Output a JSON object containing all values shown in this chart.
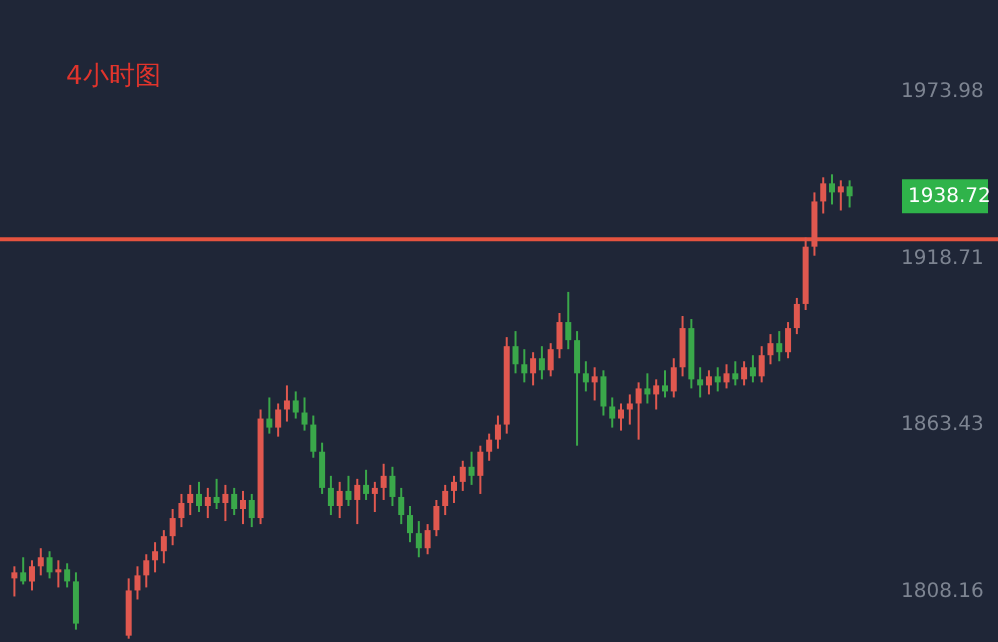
{
  "chart_data": {
    "type": "candlestick",
    "title": "4小时图",
    "categories": [
      null,
      null,
      null,
      null,
      null,
      null,
      null,
      null,
      null,
      null,
      null,
      null,
      null,
      null,
      null,
      null,
      null,
      null,
      null,
      null,
      null,
      null,
      null,
      null,
      null,
      null,
      null,
      null,
      null,
      null,
      null,
      null,
      null,
      null,
      null,
      null,
      null,
      null,
      null,
      null,
      null,
      null,
      null,
      null,
      null,
      null,
      null,
      null,
      null,
      null,
      null,
      null,
      null,
      null,
      null,
      null,
      null,
      null,
      null,
      null,
      null,
      null,
      null,
      null,
      null,
      null,
      null,
      null,
      null,
      null,
      null,
      null,
      null,
      null,
      null,
      null,
      null,
      null,
      null,
      null,
      null,
      null,
      null,
      null,
      null,
      null,
      null,
      null,
      null,
      null,
      null,
      null,
      null,
      null,
      null,
      null
    ],
    "ohlc": [
      [
        1812,
        1816,
        1806,
        1814
      ],
      [
        1814,
        1819,
        1810,
        1811
      ],
      [
        1811,
        1818,
        1808,
        1816
      ],
      [
        1816,
        1822,
        1813,
        1819
      ],
      [
        1819,
        1821,
        1812,
        1814
      ],
      [
        1814,
        1818,
        1809,
        1815
      ],
      [
        1815,
        1817,
        1809,
        1811
      ],
      [
        1811,
        1814,
        1795,
        1797
      ],
      null,
      null,
      null,
      null,
      null,
      [
        1793,
        1812,
        1792,
        1808
      ],
      [
        1808,
        1816,
        1805,
        1813
      ],
      [
        1813,
        1820,
        1809,
        1818
      ],
      [
        1818,
        1824,
        1814,
        1821
      ],
      [
        1821,
        1828,
        1817,
        1826
      ],
      [
        1826,
        1835,
        1823,
        1832
      ],
      [
        1832,
        1840,
        1829,
        1837
      ],
      [
        1837,
        1843,
        1833,
        1840
      ],
      [
        1840,
        1844,
        1834,
        1836
      ],
      [
        1836,
        1842,
        1832,
        1839
      ],
      [
        1839,
        1845,
        1835,
        1837
      ],
      [
        1837,
        1843,
        1831,
        1840
      ],
      [
        1840,
        1842,
        1833,
        1835
      ],
      [
        1835,
        1841,
        1830,
        1838
      ],
      [
        1838,
        1840,
        1829,
        1832
      ],
      [
        1832,
        1868,
        1830,
        1865
      ],
      [
        1865,
        1872,
        1860,
        1862
      ],
      [
        1862,
        1870,
        1859,
        1868
      ],
      [
        1868,
        1876,
        1864,
        1871
      ],
      [
        1871,
        1874,
        1865,
        1867
      ],
      [
        1867,
        1872,
        1861,
        1863
      ],
      [
        1863,
        1866,
        1852,
        1854
      ],
      [
        1854,
        1857,
        1840,
        1842
      ],
      [
        1842,
        1846,
        1833,
        1836
      ],
      [
        1836,
        1844,
        1832,
        1841
      ],
      [
        1841,
        1846,
        1836,
        1838
      ],
      [
        1838,
        1845,
        1830,
        1843
      ],
      [
        1843,
        1848,
        1838,
        1840
      ],
      [
        1840,
        1844,
        1834,
        1842
      ],
      [
        1842,
        1850,
        1838,
        1846
      ],
      [
        1846,
        1849,
        1836,
        1839
      ],
      [
        1839,
        1842,
        1830,
        1833
      ],
      [
        1833,
        1836,
        1824,
        1827
      ],
      [
        1827,
        1831,
        1819,
        1822
      ],
      [
        1822,
        1830,
        1820,
        1828
      ],
      [
        1828,
        1838,
        1826,
        1836
      ],
      [
        1836,
        1843,
        1833,
        1841
      ],
      [
        1841,
        1846,
        1837,
        1844
      ],
      [
        1844,
        1851,
        1841,
        1849
      ],
      [
        1849,
        1854,
        1843,
        1846
      ],
      [
        1846,
        1856,
        1840,
        1854
      ],
      [
        1854,
        1860,
        1851,
        1858
      ],
      [
        1858,
        1866,
        1855,
        1863
      ],
      [
        1863,
        1892,
        1860,
        1889
      ],
      [
        1889,
        1894,
        1880,
        1883
      ],
      [
        1883,
        1888,
        1877,
        1880
      ],
      [
        1880,
        1887,
        1876,
        1885
      ],
      [
        1885,
        1889,
        1878,
        1881
      ],
      [
        1881,
        1890,
        1879,
        1888
      ],
      [
        1888,
        1900,
        1885,
        1897
      ],
      [
        1897,
        1907,
        1888,
        1891
      ],
      [
        1891,
        1894,
        1856,
        1880
      ],
      [
        1880,
        1884,
        1874,
        1877
      ],
      [
        1877,
        1882,
        1871,
        1879
      ],
      [
        1879,
        1881,
        1866,
        1869
      ],
      [
        1869,
        1872,
        1862,
        1865
      ],
      [
        1865,
        1870,
        1861,
        1868
      ],
      [
        1868,
        1873,
        1863,
        1870
      ],
      [
        1870,
        1877,
        1858,
        1875
      ],
      [
        1875,
        1880,
        1870,
        1873
      ],
      [
        1873,
        1878,
        1868,
        1876
      ],
      [
        1876,
        1881,
        1872,
        1874
      ],
      [
        1874,
        1885,
        1872,
        1882
      ],
      [
        1882,
        1899,
        1879,
        1895
      ],
      [
        1895,
        1898,
        1875,
        1878
      ],
      [
        1878,
        1882,
        1872,
        1876
      ],
      [
        1876,
        1881,
        1873,
        1879
      ],
      [
        1879,
        1882,
        1874,
        1877
      ],
      [
        1877,
        1883,
        1875,
        1880
      ],
      [
        1880,
        1884,
        1876,
        1878
      ],
      [
        1878,
        1884,
        1876,
        1882
      ],
      [
        1882,
        1886,
        1877,
        1879
      ],
      [
        1879,
        1889,
        1877,
        1886
      ],
      [
        1886,
        1893,
        1883,
        1890
      ],
      [
        1890,
        1894,
        1884,
        1887
      ],
      [
        1887,
        1897,
        1885,
        1895
      ],
      [
        1895,
        1905,
        1893,
        1903
      ],
      [
        1903,
        1925,
        1901,
        1922
      ],
      [
        1922,
        1940,
        1919,
        1937
      ],
      [
        1937,
        1945,
        1933,
        1943
      ],
      [
        1943,
        1946,
        1936,
        1940
      ],
      [
        1940,
        1944,
        1934,
        1942
      ],
      [
        1942,
        1944,
        1935,
        1938.72
      ]
    ],
    "colors": [
      "#e0584f",
      "#3aa84a",
      "#e0584f",
      "#e0584f",
      "#3aa84a",
      "#e0584f",
      "#3aa84a",
      "#3aa84a",
      null,
      null,
      null,
      null,
      null,
      "#e0584f",
      "#e0584f",
      "#e0584f",
      "#e0584f",
      "#e0584f",
      "#e0584f",
      "#e0584f",
      "#e0584f",
      "#3aa84a",
      "#e0584f",
      "#3aa84a",
      "#e0584f",
      "#3aa84a",
      "#e0584f",
      "#3aa84a",
      "#e0584f",
      "#3aa84a",
      "#e0584f",
      "#e0584f",
      "#3aa84a",
      "#3aa84a",
      "#3aa84a",
      "#3aa84a",
      "#3aa84a",
      "#e0584f",
      "#3aa84a",
      "#e0584f",
      "#3aa84a",
      "#e0584f",
      "#e0584f",
      "#3aa84a",
      "#3aa84a",
      "#3aa84a",
      "#3aa84a",
      "#e0584f",
      "#e0584f",
      "#e0584f",
      "#e0584f",
      "#e0584f",
      "#3aa84a",
      "#e0584f",
      "#e0584f",
      "#e0584f",
      "#e0584f",
      "#3aa84a",
      "#3aa84a",
      "#e0584f",
      "#3aa84a",
      "#e0584f",
      "#e0584f",
      "#3aa84a",
      "#3aa84a",
      "#3aa84a",
      "#e0584f",
      "#3aa84a",
      "#3aa84a",
      "#e0584f",
      "#e0584f",
      "#e0584f",
      "#3aa84a",
      "#e0584f",
      "#3aa84a",
      "#e0584f",
      "#e0584f",
      "#3aa84a",
      "#3aa84a",
      "#e0584f",
      "#3aa84a",
      "#e0584f",
      "#3aa84a",
      "#e0584f",
      "#3aa84a",
      "#e0584f",
      "#e0584f",
      "#3aa84a",
      "#e0584f",
      "#e0584f",
      "#e0584f",
      "#e0584f",
      "#e0584f",
      "#3aa84a",
      "#e0584f",
      "#3aa84a"
    ],
    "ylim": [
      1790.9,
      2003.8
    ],
    "yticks": [
      {
        "value": 1808.16,
        "label": "1808.16"
      },
      {
        "value": 1863.43,
        "label": "1863.43"
      },
      {
        "value": 1918.71,
        "label": "1918.71"
      },
      {
        "value": 1973.98,
        "label": "1973.98"
      }
    ],
    "tick_labels": "y",
    "ref_lines": [
      {
        "axis": "y",
        "value": 1924.5,
        "color": "#e5533f"
      }
    ],
    "annotations": [
      "1938.72"
    ]
  }
}
